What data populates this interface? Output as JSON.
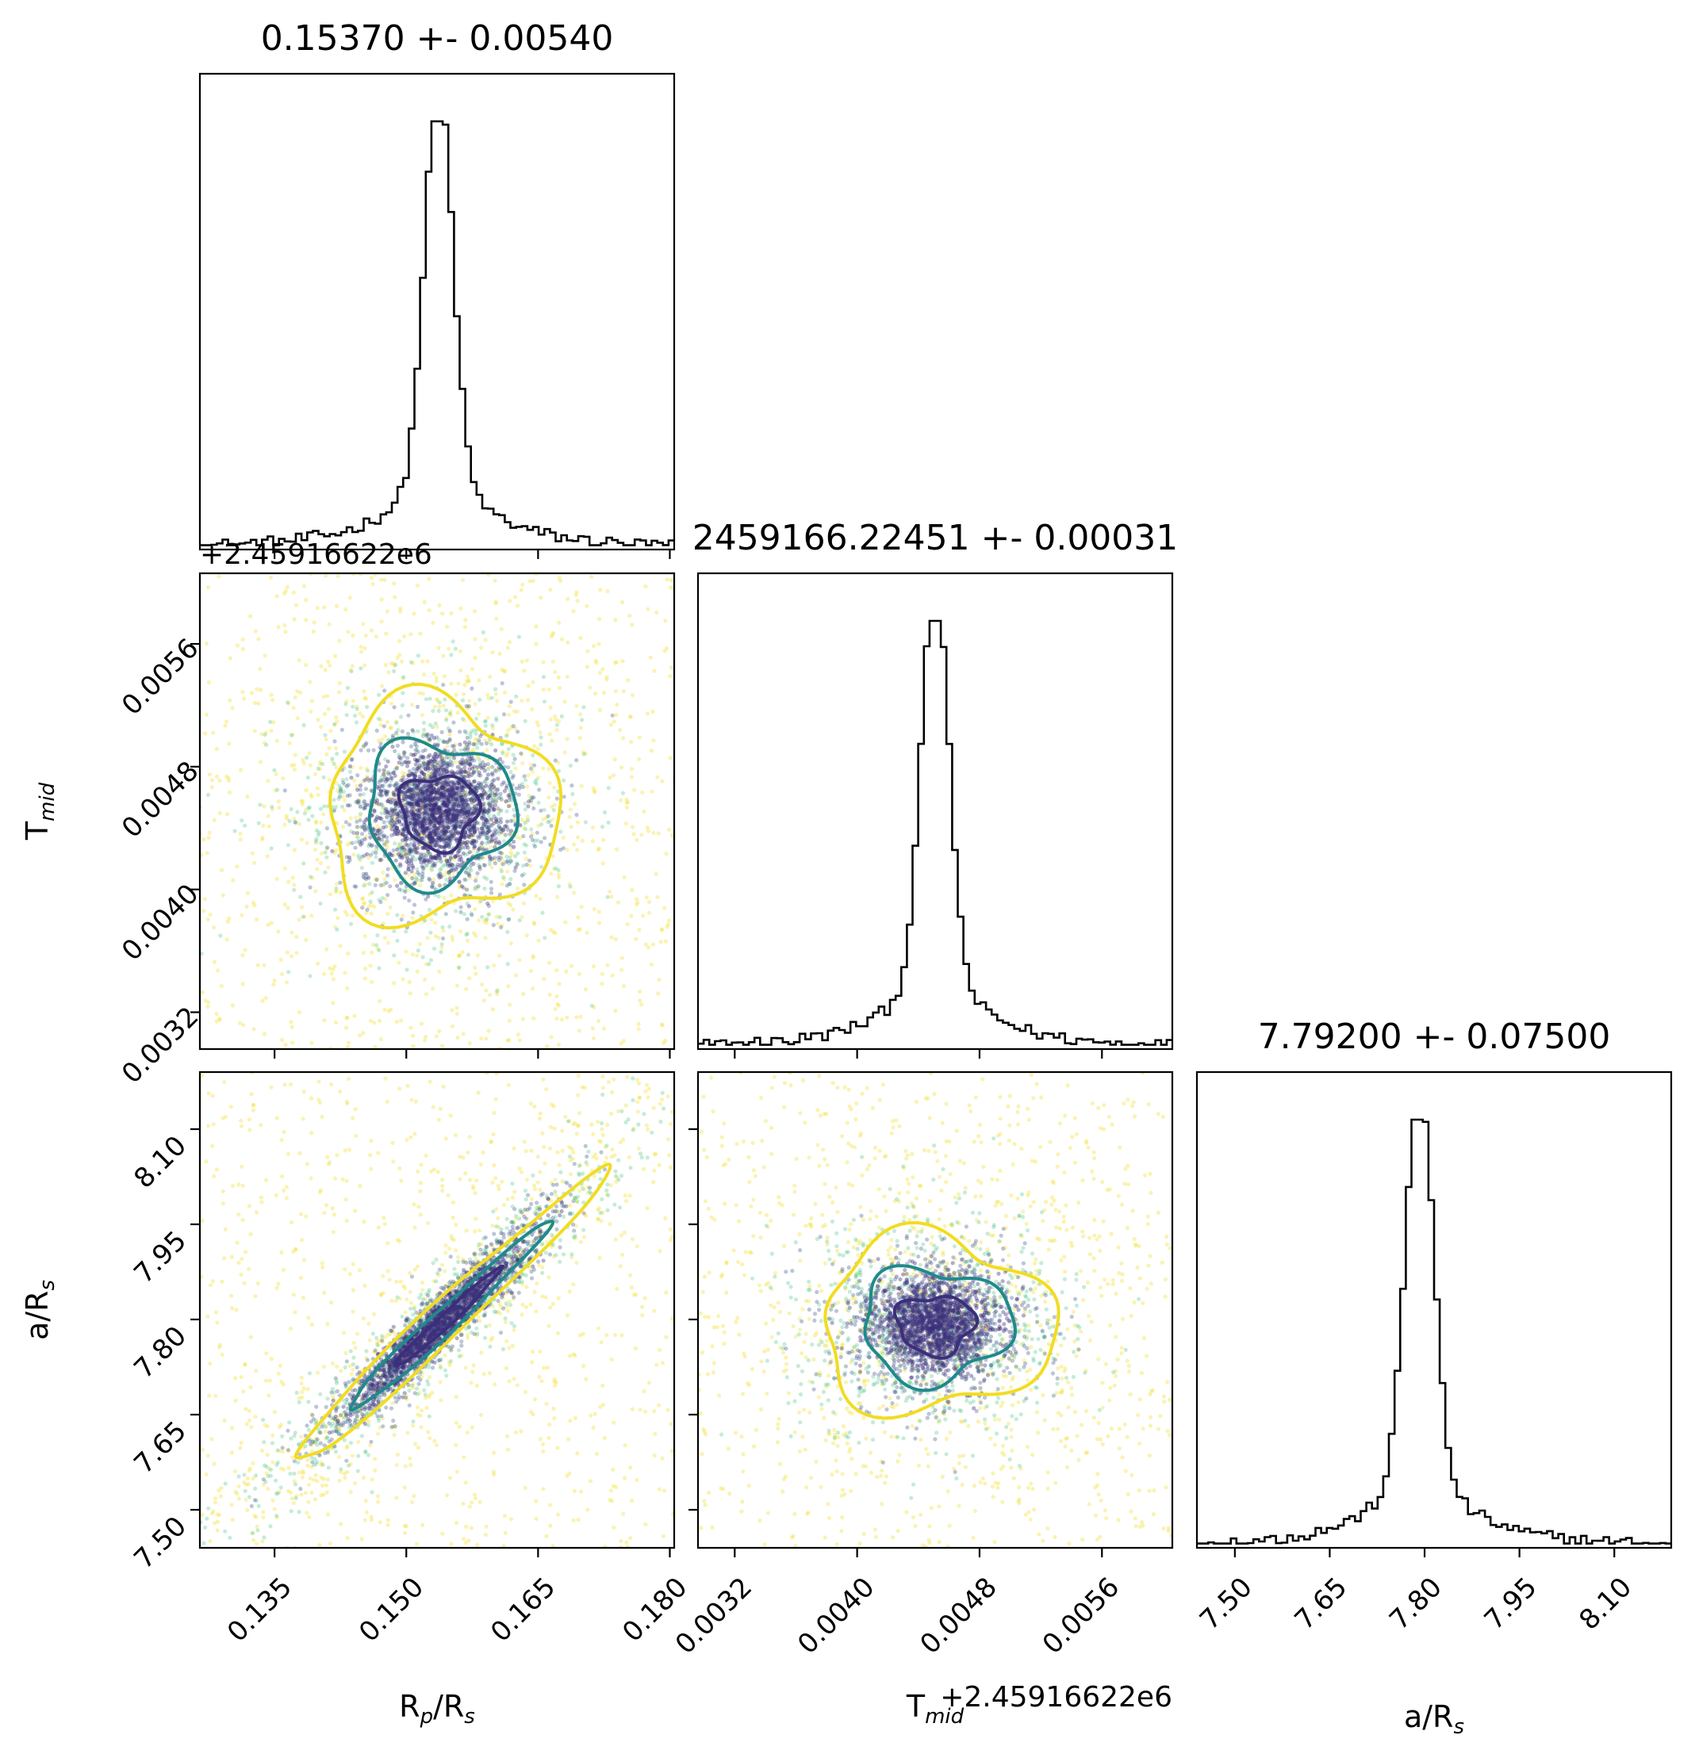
{
  "figure": {
    "type": "corner-plot",
    "parameters": [
      "R_p/R_s",
      "T_mid",
      "a/R_s"
    ],
    "colors": {
      "axes": "#000000",
      "contour_inner": "#3b2f7a",
      "contour_mid": "#1f8a8a",
      "contour_outer": "#f2dc22"
    }
  },
  "chart_data": [
    {
      "type": "histogram",
      "id": "hist-rp-rs",
      "title": "0.15370 +- 0.00540",
      "xlim": [
        0.1265,
        0.1805
      ],
      "x_ticks": [
        0.135,
        0.15,
        0.165,
        0.18
      ],
      "x_tick_labels": [
        "",
        "",
        "",
        ""
      ],
      "peak_center": 0.1537,
      "peak_width": 0.0016,
      "bins": 84,
      "offset_text": "+2.45916622e6"
    },
    {
      "type": "histogram",
      "id": "hist-tmid",
      "title": "2459166.22451 +- 0.00031",
      "xlim": [
        0.00296,
        0.00606
      ],
      "x_ticks": [
        0.0032,
        0.004,
        0.0048,
        0.0056
      ],
      "x_tick_labels": [
        "",
        "",
        "",
        ""
      ],
      "peak_center": 0.00451,
      "peak_width": 9e-05,
      "bins": 84
    },
    {
      "type": "histogram",
      "id": "hist-a-rs",
      "title": "7.79200 +- 0.07500",
      "xlim": [
        7.44,
        8.19
      ],
      "x_ticks": [
        7.5,
        7.65,
        7.8,
        7.95,
        8.1
      ],
      "x_tick_labels": [
        "7.50",
        "7.65",
        "7.80",
        "7.95",
        "8.10"
      ],
      "xlabel": "a/R",
      "xlabel_sub": "s",
      "peak_center": 7.792,
      "peak_width": 0.022,
      "bins": 84
    },
    {
      "type": "scatter",
      "id": "scatter-rp-tmid",
      "x_param": "R_p/R_s",
      "y_param": "T_mid",
      "xlim": [
        0.1265,
        0.1805
      ],
      "ylim": [
        0.00296,
        0.00606
      ],
      "x_ticks": [
        0.135,
        0.15,
        0.165,
        0.18
      ],
      "y_ticks": [
        0.0032,
        0.004,
        0.0048,
        0.0056
      ],
      "y_tick_labels": [
        "0.0032",
        "0.0040",
        "0.0048",
        "0.0056"
      ],
      "ylabel": "T",
      "ylabel_sub": "mid",
      "center": [
        0.1537,
        0.00451
      ],
      "offset_text": "+2.45916622e6"
    },
    {
      "type": "scatter",
      "id": "scatter-rp-ars",
      "x_param": "R_p/R_s",
      "y_param": "a/R_s",
      "xlim": [
        0.1265,
        0.1805
      ],
      "ylim": [
        7.44,
        8.19
      ],
      "x_ticks": [
        0.135,
        0.15,
        0.165,
        0.18
      ],
      "x_tick_labels": [
        "0.135",
        "0.150",
        "0.165",
        "0.180"
      ],
      "y_ticks": [
        7.5,
        7.65,
        7.8,
        7.95,
        8.1
      ],
      "y_tick_labels": [
        "7.50",
        "7.65",
        "7.80",
        "7.95",
        "8.10"
      ],
      "xlabel": "R",
      "xlabel_sub": "p",
      "xlabel_mid": "/R",
      "xlabel_sub2": "s",
      "ylabel": "a/R",
      "ylabel_sub": "s",
      "center": [
        0.1537,
        7.792
      ],
      "correlation": "positive"
    },
    {
      "type": "scatter",
      "id": "scatter-tmid-ars",
      "x_param": "T_mid",
      "y_param": "a/R_s",
      "xlim": [
        0.00296,
        0.00606
      ],
      "ylim": [
        7.44,
        8.19
      ],
      "x_ticks": [
        0.0032,
        0.004,
        0.0048,
        0.0056
      ],
      "x_tick_labels": [
        "0.0032",
        "0.0040",
        "0.0048",
        "0.0056"
      ],
      "y_ticks": [
        7.5,
        7.65,
        7.8,
        7.95,
        8.1
      ],
      "xlabel": "T",
      "xlabel_sub": "mid",
      "offset_text": "+2.45916622e6",
      "center": [
        0.00451,
        7.792
      ]
    }
  ]
}
